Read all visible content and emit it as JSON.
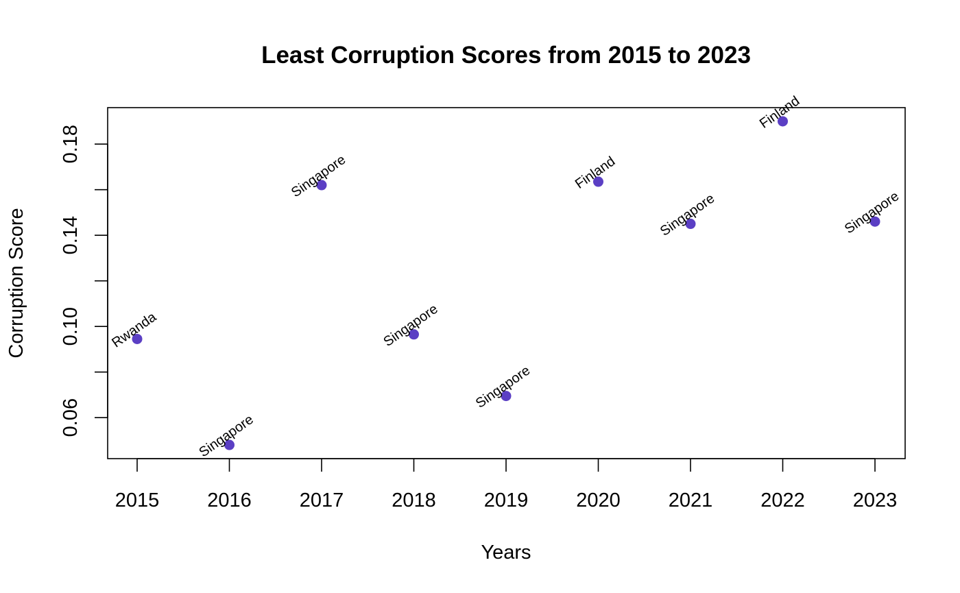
{
  "chart_data": {
    "type": "scatter",
    "title": "Least Corruption Scores from 2015 to 2023",
    "xlabel": "Years",
    "ylabel": "Corruption Score",
    "x": [
      "2015",
      "2016",
      "2017",
      "2018",
      "2019",
      "2020",
      "2021",
      "2022",
      "2023"
    ],
    "y": [
      0.0945,
      0.048,
      0.162,
      0.0965,
      0.0695,
      0.1635,
      0.145,
      0.19,
      0.146
    ],
    "point_labels": [
      "Rwanda",
      "Singapore",
      "Singapore",
      "Singapore",
      "Singapore",
      "Finland",
      "Singapore",
      "Finland",
      "Singapore"
    ],
    "ylim": [
      0.042,
      0.196
    ],
    "y_ticks": [
      0.06,
      0.08,
      0.1,
      0.12,
      0.14,
      0.16,
      0.18
    ],
    "y_tick_labels": [
      "0.06",
      "",
      "0.10",
      "",
      "0.14",
      "",
      "0.18"
    ],
    "point_color": "#5b3fc4",
    "grid": false,
    "legend": "none"
  }
}
